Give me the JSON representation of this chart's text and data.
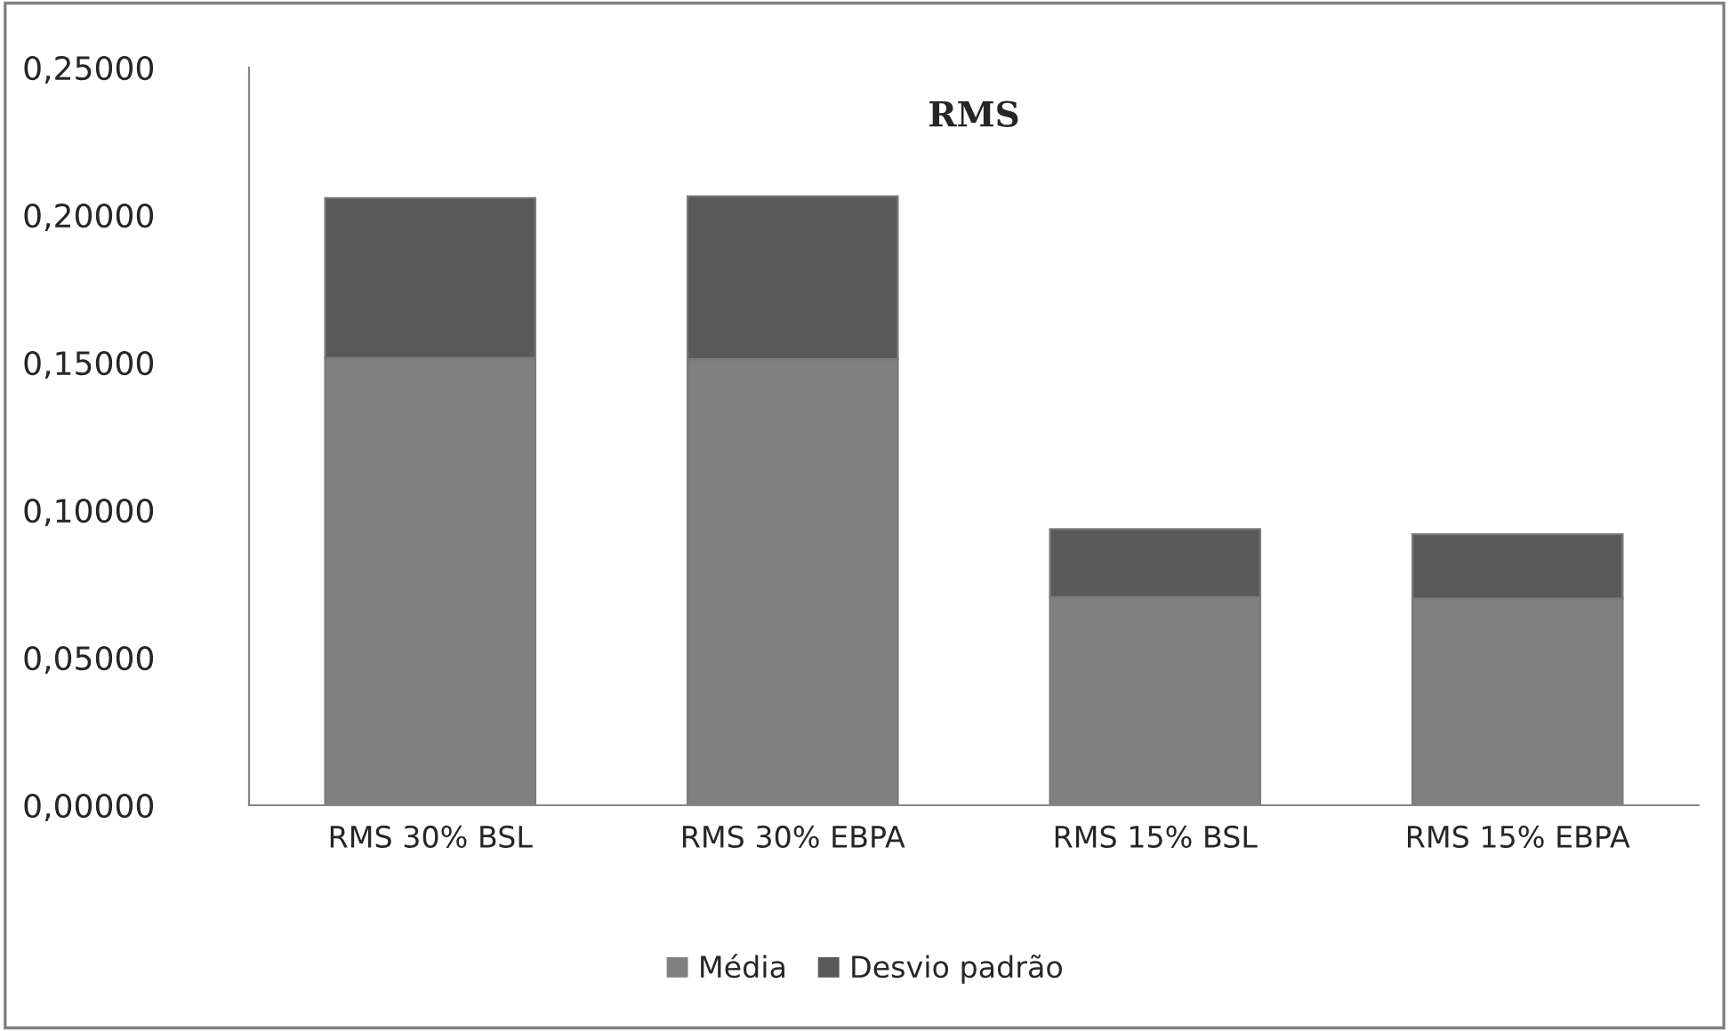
{
  "chart_data": {
    "type": "bar",
    "title": "RMS",
    "stacked": true,
    "categories": [
      "RMS 30% BSL",
      "RMS 30% EBPA",
      "RMS 15% BSL",
      "RMS 15% EBPA"
    ],
    "series": [
      {
        "name": "Média",
        "color": "#808080",
        "values": [
          0.1516,
          0.1512,
          0.0705,
          0.0701
        ]
      },
      {
        "name": "Desvio padrão",
        "color": "#595959",
        "values": [
          0.0542,
          0.0552,
          0.0231,
          0.0217
        ]
      }
    ],
    "ylim": [
      0,
      0.25
    ],
    "yticks": [
      {
        "value": 0,
        "label": "0,00000"
      },
      {
        "value": 0.05,
        "label": "0,05000"
      },
      {
        "value": 0.1,
        "label": "0,10000"
      },
      {
        "value": 0.15,
        "label": "0,15000"
      },
      {
        "value": 0.2,
        "label": "0,20000"
      },
      {
        "value": 0.25,
        "label": "0,25000"
      }
    ],
    "grid": false,
    "legend": "bottom"
  }
}
